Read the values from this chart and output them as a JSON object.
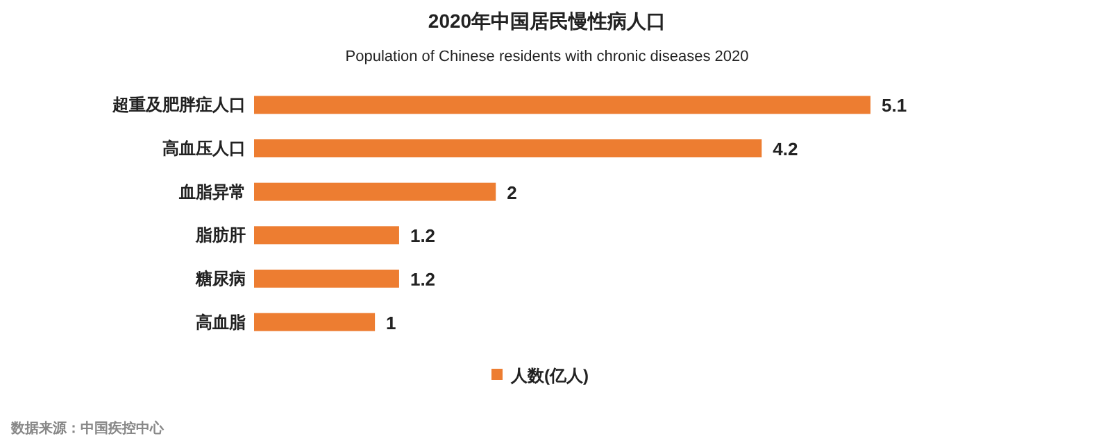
{
  "chart_data": {
    "type": "bar",
    "orientation": "horizontal",
    "title": "2020年中国居民慢性病人口",
    "subtitle": "Population of Chinese residents with chronic diseases 2020",
    "categories": [
      "超重及肥胖症人口",
      "高血压人口",
      "血脂异常",
      "脂肪肝",
      "糖尿病",
      "高血脂"
    ],
    "series": [
      {
        "name": "人数(亿人)",
        "color": "#ed7d31",
        "values": [
          5.1,
          4.2,
          2,
          1.2,
          1.2,
          1
        ]
      }
    ],
    "data_labels": true,
    "legend": "bottom",
    "annotations": [
      "数据来源：中国疾控中心"
    ]
  }
}
